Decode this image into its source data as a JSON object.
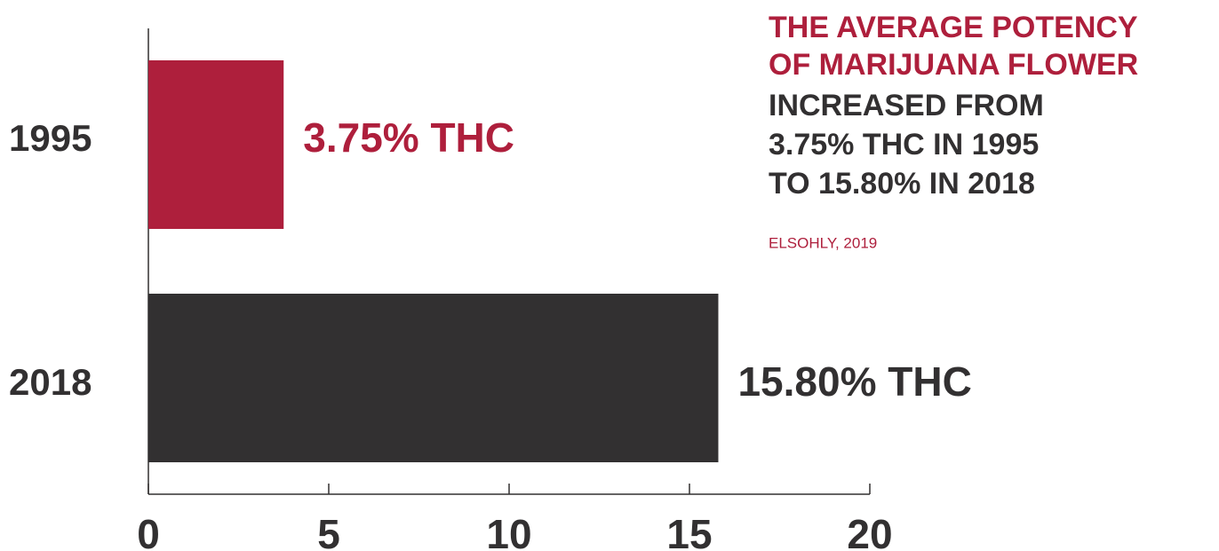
{
  "chart_data": {
    "type": "bar",
    "orientation": "horizontal",
    "title": [
      "THE AVERAGE POTENCY",
      "OF MARIJUANA FLOWER"
    ],
    "subtitle": [
      "INCREASED FROM",
      "3.75% THC IN 1995",
      "TO 15.80% IN 2018"
    ],
    "source": "ELSOHLY, 2019",
    "categories": [
      "1995",
      "2018"
    ],
    "values": [
      3.75,
      15.8
    ],
    "value_labels": [
      "3.75% THC",
      "15.80% THC"
    ],
    "colors": [
      "#ae1f3c",
      "#323031"
    ],
    "label_colors": [
      "#ae1f3c",
      "#323031"
    ],
    "title_color": "#ae1f3c",
    "xlim": [
      0,
      20
    ],
    "xticks": [
      0,
      5,
      10,
      15,
      20
    ],
    "grid": false
  }
}
